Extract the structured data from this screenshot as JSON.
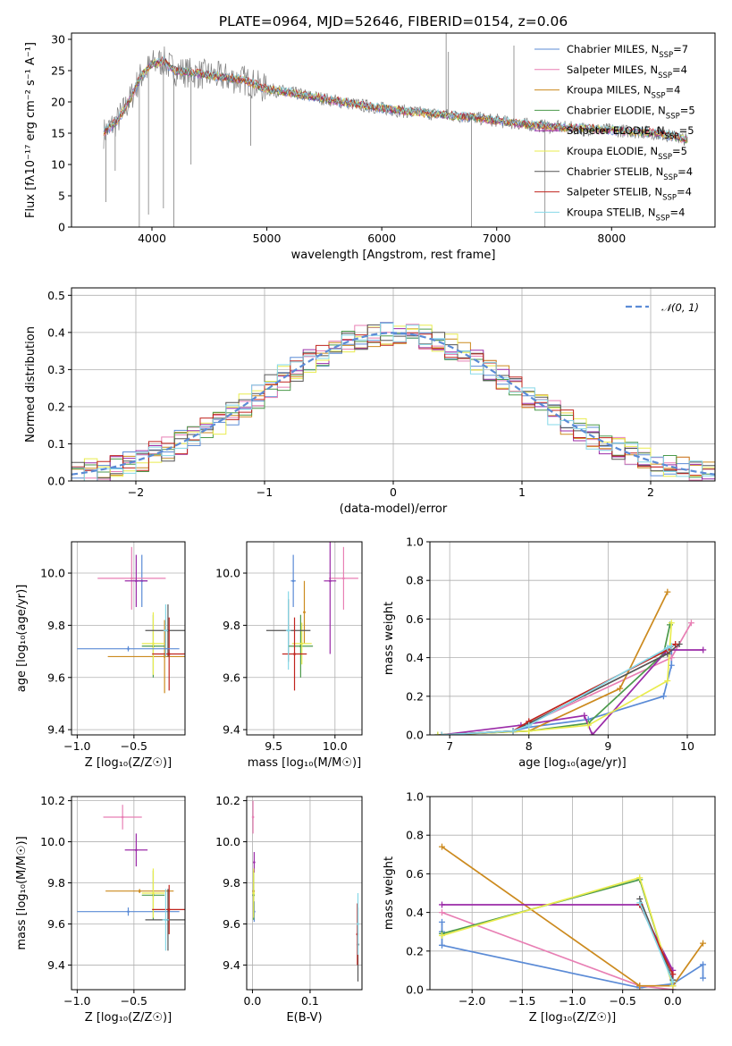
{
  "figure_title": "PLATE=0964, MJD=52646, FIBERID=0154, z=0.06",
  "colors": {
    "chabrier_miles": "#5b8bd6",
    "salpeter_miles": "#e87fb4",
    "kroupa_miles": "#cc8a1e",
    "chabrier_elodie": "#4c9a4c",
    "salpeter_elodie": "#9b2ba8",
    "kroupa_elodie": "#e9ec4e",
    "chabrier_stelib": "#555555",
    "salpeter_stelib": "#c0241e",
    "kroupa_stelib": "#86d8e8",
    "data_gray": "#7f7f7f",
    "gaussian": "#5b8bd6"
  },
  "chart_data": [
    {
      "panel": "spectrum",
      "type": "line",
      "xlabel": "wavelength [Angstrom, rest frame]",
      "ylabel": "Flux [fλ10⁻¹⁷ erg cm⁻² s⁻¹ A⁻¹]",
      "xlim": [
        3300,
        8900
      ],
      "ylim": [
        0,
        31
      ],
      "xticks": [
        4000,
        5000,
        6000,
        7000,
        8000
      ],
      "yticks": [
        0,
        5,
        10,
        15,
        20,
        25,
        30
      ],
      "grid": false,
      "legend_position": "upper-right",
      "legend": [
        {
          "label": "Chabrier MILES, N",
          "sub": "SSP",
          "suffix": "=7",
          "color_key": "chabrier_miles"
        },
        {
          "label": "Salpeter MILES, N",
          "sub": "SSP",
          "suffix": "=4",
          "color_key": "salpeter_miles"
        },
        {
          "label": "Kroupa MILES, N",
          "sub": "SSP",
          "suffix": "=4",
          "color_key": "kroupa_miles"
        },
        {
          "label": "Chabrier ELODIE, N",
          "sub": "SSP",
          "suffix": "=5",
          "color_key": "chabrier_elodie"
        },
        {
          "label": "Salpeter ELODIE, N",
          "sub": "SSP",
          "suffix": "=5",
          "color_key": "salpeter_elodie"
        },
        {
          "label": "Kroupa ELODIE, N",
          "sub": "SSP",
          "suffix": "=5",
          "color_key": "kroupa_elodie"
        },
        {
          "label": "Chabrier STELIB, N",
          "sub": "SSP",
          "suffix": "=4",
          "color_key": "chabrier_stelib"
        },
        {
          "label": "Salpeter STELIB, N",
          "sub": "SSP",
          "suffix": "=4",
          "color_key": "salpeter_stelib"
        },
        {
          "label": "Kroupa STELIB, N",
          "sub": "SSP",
          "suffix": "=4",
          "color_key": "kroupa_stelib"
        }
      ],
      "continuum": [
        [
          3580,
          15
        ],
        [
          3700,
          17
        ],
        [
          3800,
          20
        ],
        [
          3900,
          24
        ],
        [
          4000,
          26
        ],
        [
          4100,
          26.5
        ],
        [
          4200,
          25
        ],
        [
          4400,
          24.5
        ],
        [
          4600,
          24
        ],
        [
          4800,
          23.5
        ],
        [
          5000,
          22
        ],
        [
          5200,
          21.5
        ],
        [
          5500,
          20.5
        ],
        [
          5800,
          19.5
        ],
        [
          6000,
          19
        ],
        [
          6200,
          18.5
        ],
        [
          6500,
          18
        ],
        [
          6800,
          17.5
        ],
        [
          7000,
          17
        ],
        [
          7200,
          16.5
        ],
        [
          7500,
          16
        ],
        [
          8000,
          15.5
        ],
        [
          8400,
          15
        ],
        [
          8660,
          14
        ]
      ],
      "spikes": [
        [
          3600,
          4
        ],
        [
          3680,
          9
        ],
        [
          3890,
          0
        ],
        [
          3970,
          2
        ],
        [
          4100,
          3
        ],
        [
          4190,
          0
        ],
        [
          4340,
          10
        ],
        [
          4860,
          13
        ],
        [
          6560,
          31
        ],
        [
          6580,
          28
        ],
        [
          6780,
          0
        ],
        [
          7420,
          0
        ],
        [
          7150,
          29
        ],
        [
          8350,
          14
        ]
      ]
    },
    {
      "panel": "residual-histogram",
      "type": "line",
      "xlabel": "(data-model)/error",
      "ylabel": "Normed distribution",
      "xlim": [
        -2.5,
        2.5
      ],
      "ylim": [
        0,
        0.52
      ],
      "xticks": [
        -2,
        -1,
        0,
        1,
        2
      ],
      "yticks": [
        0.0,
        0.1,
        0.2,
        0.3,
        0.4,
        0.5
      ],
      "grid": true,
      "legend_position": "upper-right",
      "gaussian_label": "𝒩(0, 1)",
      "bin_width": 0.1
    },
    {
      "panel": "age-vs-Z",
      "type": "scatter",
      "xlabel": "Z [log₁₀(Z/Z☉)]",
      "ylabel": "age  [log₁₀(age/yr)]",
      "xlim": [
        -1.05,
        -0.05
      ],
      "ylim": [
        9.38,
        10.12
      ],
      "xticks": [
        -1.0,
        -0.5
      ],
      "yticks": [
        9.4,
        9.6,
        9.8,
        10.0
      ],
      "grid": true,
      "points": [
        {
          "x": -0.43,
          "y": 9.97,
          "xerr": 0.05,
          "yerr": 0.1,
          "color_key": "chabrier_miles"
        },
        {
          "x": -0.52,
          "y": 9.98,
          "xerr": 0.3,
          "yerr": 0.12,
          "color_key": "salpeter_miles"
        },
        {
          "x": -0.23,
          "y": 9.68,
          "xerr": 0.5,
          "yerr": 0.14,
          "color_key": "kroupa_miles"
        },
        {
          "x": -0.33,
          "y": 9.72,
          "xerr": 0.1,
          "yerr": 0.12,
          "color_key": "chabrier_elodie"
        },
        {
          "x": -0.48,
          "y": 9.97,
          "xerr": 0.1,
          "yerr": 0.1,
          "color_key": "salpeter_elodie"
        },
        {
          "x": -0.33,
          "y": 9.73,
          "xerr": 0.1,
          "yerr": 0.12,
          "color_key": "kroupa_elodie"
        },
        {
          "x": -0.2,
          "y": 9.78,
          "xerr": 0.2,
          "yerr": 0.1,
          "color_key": "chabrier_stelib"
        },
        {
          "x": -0.19,
          "y": 9.69,
          "xerr": 0.15,
          "yerr": 0.14,
          "color_key": "salpeter_stelib"
        },
        {
          "x": -0.22,
          "y": 9.78,
          "xerr": 0.02,
          "yerr": 0.1,
          "color_key": "kroupa_stelib"
        },
        {
          "x": -0.55,
          "y": 9.71,
          "xerr": 0.45,
          "yerr": 0.01,
          "color_key": "chabrier_miles"
        }
      ]
    },
    {
      "panel": "age-vs-mass",
      "type": "scatter",
      "xlabel": "mass [log₁₀(M/M☉)]",
      "ylabel": "",
      "xlim": [
        9.28,
        10.22
      ],
      "ylim": [
        9.38,
        10.12
      ],
      "xticks": [
        9.5,
        10.0
      ],
      "yticks": [
        9.4,
        9.6,
        9.8,
        10.0
      ],
      "grid": true,
      "points": [
        {
          "x": 9.66,
          "y": 9.97,
          "xerr": 0.02,
          "yerr": 0.1,
          "color_key": "chabrier_miles"
        },
        {
          "x": 10.07,
          "y": 9.98,
          "xerr": 0.12,
          "yerr": 0.12,
          "color_key": "salpeter_miles"
        },
        {
          "x": 9.75,
          "y": 9.85,
          "xerr": 0.01,
          "yerr": 0.12,
          "color_key": "kroupa_miles"
        },
        {
          "x": 9.72,
          "y": 9.72,
          "xerr": 0.1,
          "yerr": 0.12,
          "color_key": "chabrier_elodie"
        },
        {
          "x": 9.96,
          "y": 9.97,
          "xerr": 0.05,
          "yerr": 0.28,
          "color_key": "salpeter_elodie"
        },
        {
          "x": 9.73,
          "y": 9.73,
          "xerr": 0.08,
          "yerr": 0.08,
          "color_key": "kroupa_elodie"
        },
        {
          "x": 9.62,
          "y": 9.78,
          "xerr": 0.18,
          "yerr": 0.12,
          "color_key": "chabrier_stelib"
        },
        {
          "x": 9.67,
          "y": 9.69,
          "xerr": 0.1,
          "yerr": 0.14,
          "color_key": "salpeter_stelib"
        },
        {
          "x": 9.62,
          "y": 9.78,
          "xerr": 0.02,
          "yerr": 0.15,
          "color_key": "kroupa_stelib"
        }
      ]
    },
    {
      "panel": "mass-weight-vs-age",
      "type": "line",
      "xlabel": "age  [log₁₀(age/yr)]",
      "ylabel": "mass weight",
      "xlim": [
        6.75,
        10.35
      ],
      "ylim": [
        0,
        1.0
      ],
      "xticks": [
        7,
        8,
        9,
        10
      ],
      "yticks": [
        0.0,
        0.2,
        0.4,
        0.6,
        0.8,
        1.0
      ],
      "grid": true,
      "series": [
        {
          "color_key": "chabrier_miles",
          "x": [
            6.85,
            7.8,
            8.0,
            8.75,
            9.7,
            9.8,
            9.8
          ],
          "y": [
            0.0,
            0.02,
            0.04,
            0.08,
            0.2,
            0.36,
            0.44
          ]
        },
        {
          "color_key": "salpeter_miles",
          "x": [
            6.9,
            7.8,
            9.8,
            10.05
          ],
          "y": [
            0.0,
            0.02,
            0.4,
            0.58
          ]
        },
        {
          "color_key": "kroupa_miles",
          "x": [
            6.9,
            8.0,
            9.15,
            9.75
          ],
          "y": [
            0.0,
            0.02,
            0.24,
            0.74
          ]
        },
        {
          "color_key": "chabrier_elodie",
          "x": [
            6.85,
            8.0,
            8.75,
            9.7,
            9.78
          ],
          "y": [
            0.0,
            0.02,
            0.06,
            0.42,
            0.57
          ]
        },
        {
          "color_key": "salpeter_elodie",
          "x": [
            6.9,
            7.9,
            8.7,
            8.8,
            9.75,
            10.2
          ],
          "y": [
            0.0,
            0.05,
            0.1,
            0.0,
            0.44,
            0.44
          ]
        },
        {
          "color_key": "kroupa_elodie",
          "x": [
            6.85,
            8.0,
            8.75,
            9.75,
            9.8
          ],
          "y": [
            0.0,
            0.02,
            0.05,
            0.28,
            0.58
          ]
        },
        {
          "color_key": "chabrier_stelib",
          "x": [
            6.9,
            7.8,
            8.0,
            9.75,
            9.9
          ],
          "y": [
            0.0,
            0.02,
            0.06,
            0.42,
            0.47
          ]
        },
        {
          "color_key": "salpeter_stelib",
          "x": [
            6.9,
            7.8,
            8.0,
            9.75,
            9.85
          ],
          "y": [
            0.0,
            0.02,
            0.07,
            0.44,
            0.47
          ]
        },
        {
          "color_key": "kroupa_stelib",
          "x": [
            6.9,
            7.8,
            8.0,
            9.75,
            9.8
          ],
          "y": [
            0.0,
            0.02,
            0.05,
            0.45,
            0.46
          ]
        }
      ]
    },
    {
      "panel": "mass-vs-Z",
      "type": "scatter",
      "xlabel": "Z [log₁₀(Z/Z☉)]",
      "ylabel": "mass [log₁₀(M/M☉)]",
      "xlim": [
        -1.05,
        -0.05
      ],
      "ylim": [
        9.28,
        10.22
      ],
      "xticks": [
        -1.0,
        -0.5
      ],
      "yticks": [
        9.4,
        9.6,
        9.8,
        10.0,
        10.2
      ],
      "grid": true,
      "points": [
        {
          "x": -0.55,
          "y": 9.66,
          "xerr": 0.45,
          "yerr": 0.02,
          "color_key": "chabrier_miles"
        },
        {
          "x": -0.6,
          "y": 10.12,
          "xerr": 0.17,
          "yerr": 0.06,
          "color_key": "salpeter_miles"
        },
        {
          "x": -0.45,
          "y": 9.76,
          "xerr": 0.3,
          "yerr": 0.01,
          "color_key": "kroupa_miles"
        },
        {
          "x": -0.33,
          "y": 9.74,
          "xerr": 0.1,
          "yerr": 0.12,
          "color_key": "chabrier_elodie"
        },
        {
          "x": -0.48,
          "y": 9.96,
          "xerr": 0.1,
          "yerr": 0.08,
          "color_key": "salpeter_elodie"
        },
        {
          "x": -0.33,
          "y": 9.75,
          "xerr": 0.1,
          "yerr": 0.12,
          "color_key": "kroupa_elodie"
        },
        {
          "x": -0.2,
          "y": 9.62,
          "xerr": 0.2,
          "yerr": 0.15,
          "color_key": "chabrier_stelib"
        },
        {
          "x": -0.19,
          "y": 9.67,
          "xerr": 0.15,
          "yerr": 0.12,
          "color_key": "salpeter_stelib"
        },
        {
          "x": -0.22,
          "y": 9.62,
          "xerr": 0.03,
          "yerr": 0.15,
          "color_key": "kroupa_stelib"
        }
      ]
    },
    {
      "panel": "mass-vs-EBV",
      "type": "scatter",
      "xlabel": "E(B-V)",
      "ylabel": "",
      "xlim": [
        -0.01,
        0.19
      ],
      "ylim": [
        9.28,
        10.22
      ],
      "xticks": [
        0.0,
        0.1
      ],
      "yticks": [
        9.4,
        9.6,
        9.8,
        10.0,
        10.2
      ],
      "grid": true,
      "points": [
        {
          "x": 0.003,
          "y": 9.66,
          "xerr": 0.0,
          "yerr": 0.05,
          "color_key": "chabrier_miles"
        },
        {
          "x": 0.001,
          "y": 10.12,
          "xerr": 0.0,
          "yerr": 0.08,
          "color_key": "salpeter_miles"
        },
        {
          "x": 0.002,
          "y": 9.76,
          "xerr": 0.0,
          "yerr": 0.1,
          "color_key": "kroupa_miles"
        },
        {
          "x": 0.002,
          "y": 9.74,
          "xerr": 0.0,
          "yerr": 0.12,
          "color_key": "chabrier_elodie"
        },
        {
          "x": 0.003,
          "y": 9.9,
          "xerr": 0.0,
          "yerr": 0.05,
          "color_key": "salpeter_elodie"
        },
        {
          "x": 0.002,
          "y": 9.75,
          "xerr": 0.0,
          "yerr": 0.12,
          "color_key": "kroupa_elodie"
        },
        {
          "x": 0.183,
          "y": 9.5,
          "xerr": 0.0,
          "yerr": 0.18,
          "color_key": "chabrier_stelib"
        },
        {
          "x": 0.182,
          "y": 9.55,
          "xerr": 0.0,
          "yerr": 0.15,
          "color_key": "salpeter_stelib"
        },
        {
          "x": 0.183,
          "y": 9.6,
          "xerr": 0.0,
          "yerr": 0.15,
          "color_key": "kroupa_stelib"
        }
      ]
    },
    {
      "panel": "mass-weight-vs-Z",
      "type": "line",
      "xlabel": "Z [log₁₀(Z/Z☉)]",
      "ylabel": "mass weight",
      "xlim": [
        -2.42,
        0.42
      ],
      "ylim": [
        0,
        1.0
      ],
      "xticks": [
        -2.0,
        -1.5,
        -1.0,
        -0.5,
        0.0
      ],
      "yticks": [
        0.0,
        0.2,
        0.4,
        0.6,
        0.8,
        1.0
      ],
      "grid": true,
      "series": [
        {
          "color_key": "chabrier_miles",
          "x": [
            -2.3,
            -2.3,
            -2.3,
            -0.33,
            0.0,
            0.3,
            0.3
          ],
          "y": [
            0.35,
            0.3,
            0.23,
            0.01,
            0.03,
            0.13,
            0.06
          ]
        },
        {
          "color_key": "salpeter_miles",
          "x": [
            -2.3,
            -0.33,
            0.0
          ],
          "y": [
            0.4,
            0.02,
            0.0
          ]
        },
        {
          "color_key": "kroupa_miles",
          "x": [
            -2.3,
            -0.33,
            0.0,
            0.3
          ],
          "y": [
            0.74,
            0.02,
            0.02,
            0.24
          ]
        },
        {
          "color_key": "chabrier_elodie",
          "x": [
            -2.3,
            -0.33,
            0.0
          ],
          "y": [
            0.29,
            0.57,
            0.02
          ]
        },
        {
          "color_key": "salpeter_elodie",
          "x": [
            -2.3,
            -0.33,
            0.0,
            0.0
          ],
          "y": [
            0.44,
            0.44,
            0.1,
            0.0
          ]
        },
        {
          "color_key": "kroupa_elodie",
          "x": [
            -2.3,
            -0.33,
            0.0
          ],
          "y": [
            0.28,
            0.58,
            0.02
          ]
        },
        {
          "color_key": "chabrier_stelib",
          "x": [
            -0.33,
            0.0
          ],
          "y": [
            0.47,
            0.05
          ]
        },
        {
          "color_key": "salpeter_stelib",
          "x": [
            -0.33,
            0.0
          ],
          "y": [
            0.44,
            0.08
          ]
        },
        {
          "color_key": "kroupa_stelib",
          "x": [
            -0.33,
            0.0
          ],
          "y": [
            0.45,
            0.04
          ]
        }
      ]
    }
  ]
}
